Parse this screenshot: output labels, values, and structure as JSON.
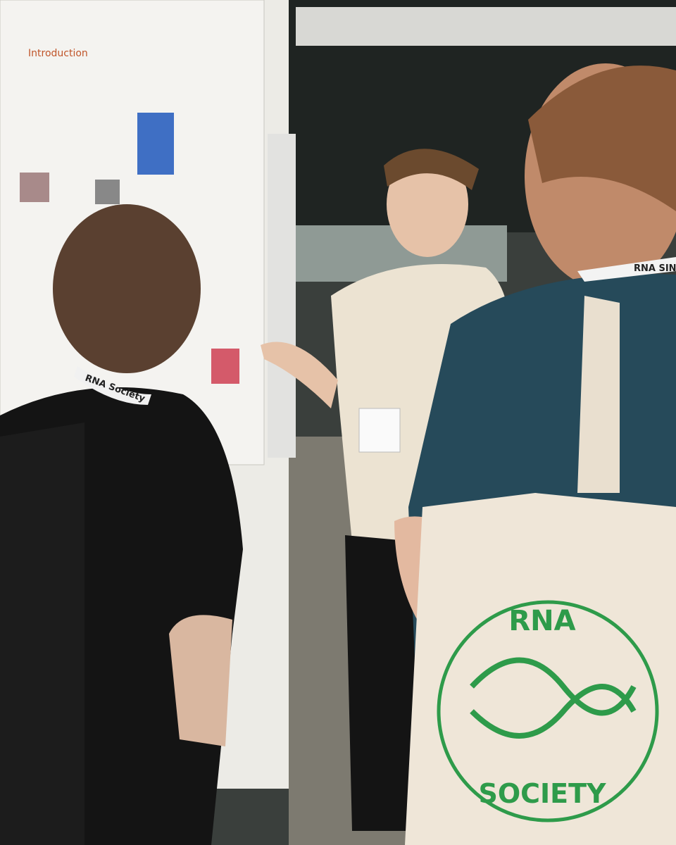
{
  "poster": {
    "heading": "Introduction"
  },
  "lanyards": [
    "RNA Society",
    "RNA SINGA"
  ],
  "bag": {
    "line1": "RNA",
    "line2": "SOCIETY"
  }
}
